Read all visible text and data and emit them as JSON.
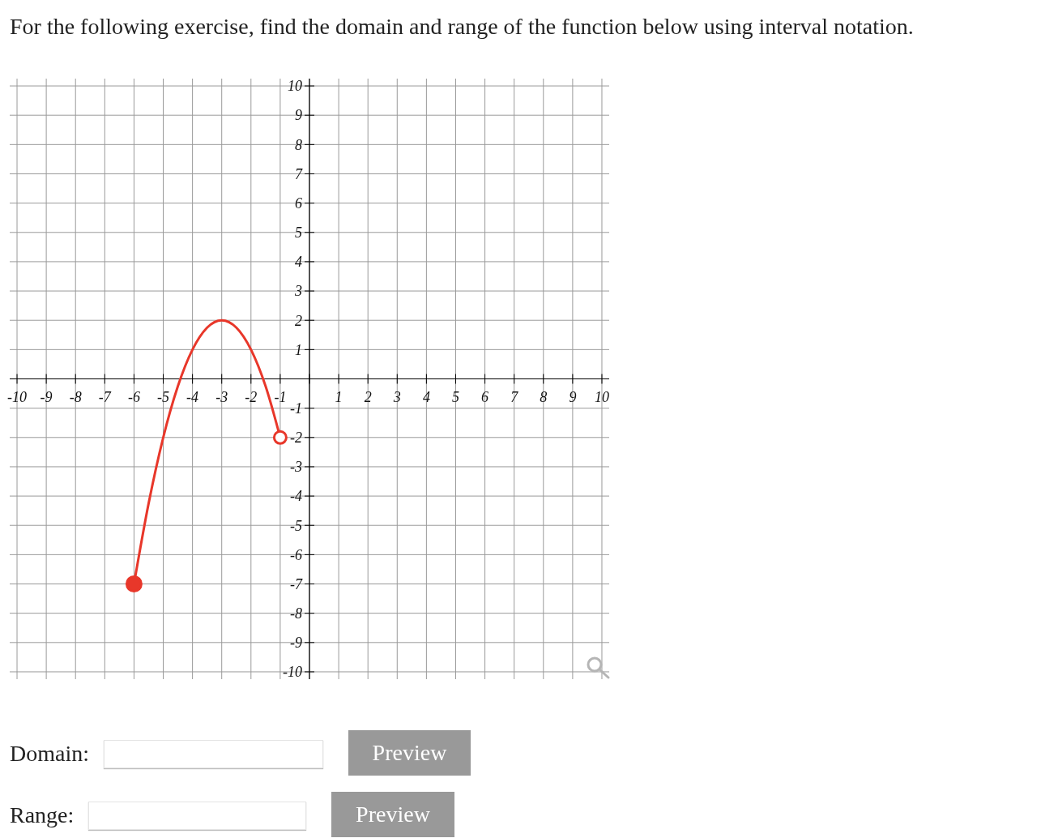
{
  "chart_data": {
    "type": "line",
    "title": "For the following exercise, find the domain and range of the function below using interval notation.",
    "x": [
      -6,
      -5.5,
      -5,
      -4.5,
      -4,
      -3.5,
      -3,
      -2.5,
      -2,
      -1.5,
      -1
    ],
    "series": [
      {
        "color": "#e8372a",
        "values": [
          -7,
          -4.25,
          -2,
          -0.25,
          1,
          1.75,
          2,
          1.75,
          1,
          -0.25,
          -2
        ]
      },
      {
        "type": "scatter",
        "marker": "circle",
        "x": [
          -6,
          -1
        ],
        "values": [
          -7,
          -2
        ],
        "color": "#e8372a",
        "colors": [
          "#e8372a",
          "#ffffff"
        ]
      }
    ],
    "xlim": [
      -10.25,
      10.25
    ],
    "ylim": [
      -10.25,
      10.25
    ],
    "xticks": [
      -10,
      -9,
      -8,
      -7,
      -6,
      -5,
      -4,
      -3,
      -2,
      -1,
      {
        "value": 0,
        "label": null
      },
      1,
      2,
      3,
      4,
      5,
      6,
      7,
      8,
      9,
      10
    ],
    "yticks": [
      -10,
      -9,
      -8,
      -7,
      -6,
      -5,
      -4,
      -3,
      -2,
      -1,
      {
        "value": 0,
        "label": null
      },
      1,
      2,
      3,
      4,
      5,
      6,
      7,
      8,
      9,
      10
    ],
    "grid": true,
    "annotations": [
      "Domain:",
      "Preview",
      "Range:",
      "Preview"
    ]
  }
}
